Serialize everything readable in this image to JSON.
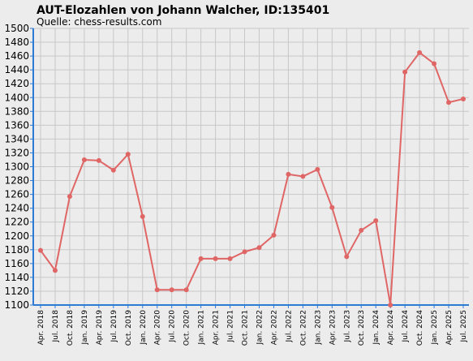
{
  "chart_data": {
    "type": "line",
    "title": "AUT-Elozahlen von Johann Walcher, ID:135401",
    "subtitle": "Quelle: chess-results.com",
    "xlabel": "",
    "ylabel": "",
    "ylim": [
      1100,
      1500
    ],
    "y_tick_step": 20,
    "grid": true,
    "colors": {
      "series": "#e06666",
      "axis": "#2e7bd6",
      "grid": "#c8c8c8",
      "background": "#ececec"
    },
    "categories": [
      "Apr. 2018",
      "Jul. 2018",
      "Oct. 2018",
      "Jan. 2019",
      "Apr. 2019",
      "Jul. 2019",
      "Oct. 2019",
      "Jan. 2020",
      "Apr. 2020",
      "Jul. 2020",
      "Oct. 2020",
      "Jan. 2021",
      "Apr. 2021",
      "Jul. 2021",
      "Oct. 2021",
      "Jan. 2022",
      "Apr. 2022",
      "Jul. 2022",
      "Oct. 2022",
      "Jan. 2023",
      "Apr. 2023",
      "Jul. 2023",
      "Oct. 2023",
      "Jan. 2024",
      "Apr. 2024",
      "Jul. 2024",
      "Oct. 2024",
      "Jan. 2025",
      "Apr. 2025",
      "Jul. 2025"
    ],
    "series": [
      {
        "values": [
          1179,
          1150,
          1257,
          1310,
          1309,
          1295,
          1318,
          1228,
          1122,
          1122,
          1122,
          1167,
          1167,
          1167,
          1177,
          1183,
          1201,
          1289,
          1286,
          1296,
          1241,
          1170,
          1208,
          1222,
          1100,
          1437,
          1465,
          1449,
          1393,
          1398
        ]
      }
    ]
  }
}
